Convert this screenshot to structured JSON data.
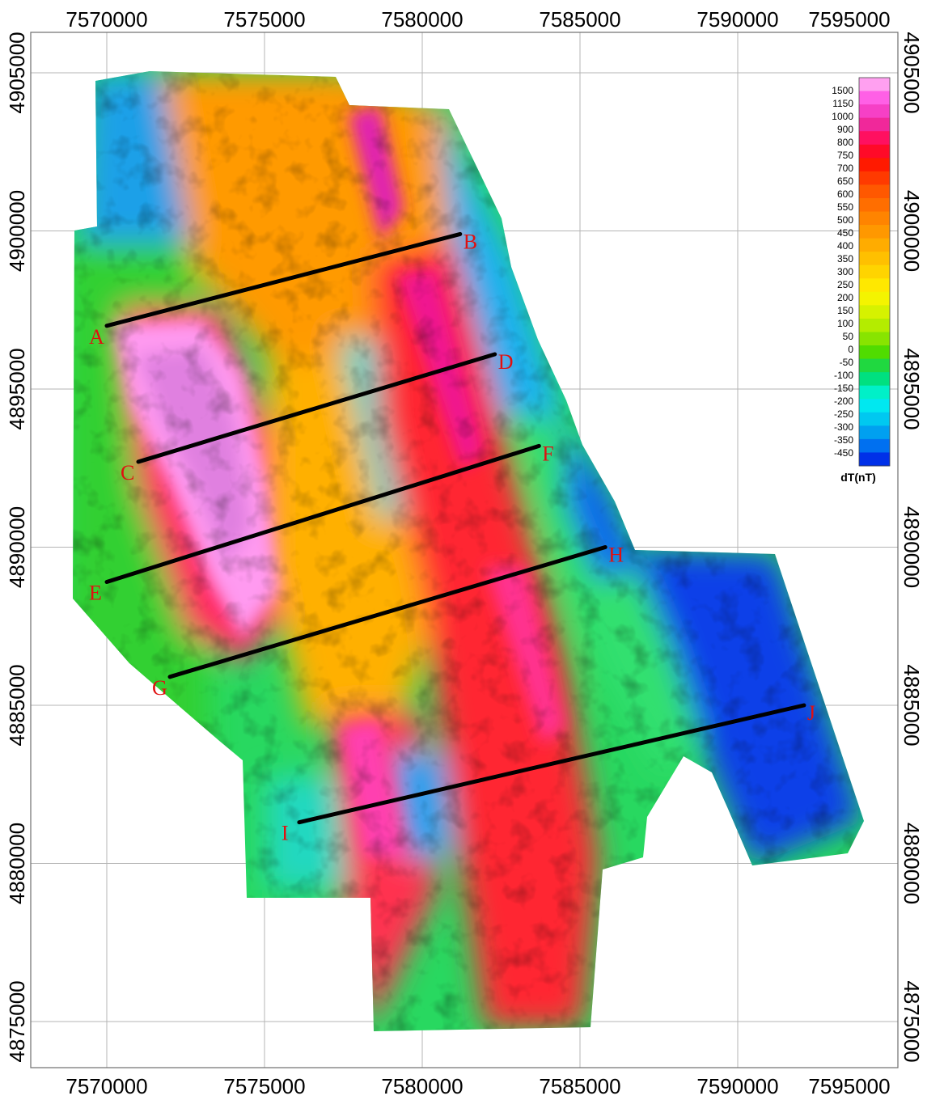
{
  "map": {
    "x_ticks": [
      "7570000",
      "7575000",
      "7580000",
      "7585000",
      "7590000",
      "7595000"
    ],
    "y_ticks": [
      "4905000",
      "4900000",
      "4895000",
      "4890000",
      "4885000",
      "4880000",
      "4875000"
    ],
    "x_range": [
      7567600,
      7592500
    ],
    "y_range": [
      4874200,
      4905800
    ]
  },
  "legend": {
    "title": "dT(nT)",
    "levels": [
      "1500",
      "1150",
      "1000",
      "900",
      "800",
      "750",
      "700",
      "650",
      "600",
      "550",
      "500",
      "450",
      "400",
      "350",
      "300",
      "250",
      "200",
      "150",
      "100",
      "50",
      "0",
      "-50",
      "-100",
      "-150",
      "-200",
      "-250",
      "-300",
      "-350",
      "-450"
    ],
    "colors": [
      "#ffa0f0",
      "#ff60e6",
      "#f640c6",
      "#f0289a",
      "#ff1060",
      "#ff0a28",
      "#ff1a00",
      "#ff3a00",
      "#ff5800",
      "#ff6e00",
      "#ff8400",
      "#ff9800",
      "#ffac00",
      "#ffc000",
      "#ffd400",
      "#ffe800",
      "#f4f400",
      "#d6f200",
      "#b4ec00",
      "#88e400",
      "#50dc00",
      "#20d840",
      "#00e080",
      "#00f0c8",
      "#00e8f0",
      "#00c8f0",
      "#00a0f0",
      "#0070f0",
      "#0030e8"
    ]
  },
  "profiles": [
    {
      "start": "A",
      "end": "B",
      "start_xy": [
        7570000,
        4897000
      ],
      "end_xy": [
        7581200,
        4899900
      ]
    },
    {
      "start": "C",
      "end": "D",
      "start_xy": [
        7571000,
        4892700
      ],
      "end_xy": [
        7582300,
        4896100
      ]
    },
    {
      "start": "E",
      "end": "F",
      "start_xy": [
        7570000,
        4888900
      ],
      "end_xy": [
        7583700,
        4893200
      ]
    },
    {
      "start": "G",
      "end": "H",
      "start_xy": [
        7572000,
        4885900
      ],
      "end_xy": [
        7585800,
        4890000
      ]
    },
    {
      "start": "I",
      "end": "J",
      "start_xy": [
        7576100,
        4881300
      ],
      "end_xy": [
        7592100,
        4885000
      ]
    }
  ]
}
